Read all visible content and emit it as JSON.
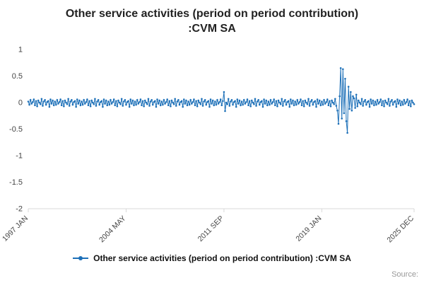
{
  "title": {
    "line1": "Other service activities (period on period contribution)",
    "line2": ":CVM SA"
  },
  "legend": {
    "label": "Other service activities (period on period contribution) :CVM SA"
  },
  "source_label": "Source:",
  "colors": {
    "series": "#1d70b8",
    "axis": "#d8d8d8",
    "tick_text": "#444444"
  },
  "chart_data": {
    "type": "line",
    "title": "Other service activities (period on period contribution) :CVM SA",
    "xlabel": "",
    "ylabel": "",
    "ylim": [
      -2,
      1
    ],
    "grid": false,
    "legend_position": "bottom",
    "y_tick_labels": [
      "1",
      "0.5",
      "0",
      "-0.5",
      "-1",
      "-1.5",
      "-2"
    ],
    "y_tick_values": [
      1,
      0.5,
      0,
      -0.5,
      -1,
      -1.5,
      -2
    ],
    "x_tick_labels": [
      "1997 JAN",
      "2004 MAY",
      "2011 SEP",
      "2019 JAN",
      "2025 DEC"
    ],
    "x_tick_indices": [
      0,
      88,
      176,
      264,
      347
    ],
    "x_start": "1997 JAN",
    "x_end": "2025 DEC",
    "frequency": "monthly",
    "series": [
      {
        "name": "Other service activities (period on period contribution) :CVM SA",
        "values": [
          0.02,
          -0.04,
          0.05,
          -0.02,
          0.01,
          0.06,
          -0.05,
          0.03,
          -0.07,
          0.04,
          0.0,
          -0.03,
          0.07,
          -0.06,
          0.02,
          0.05,
          -0.04,
          0.01,
          0.03,
          -0.08,
          0.06,
          -0.02,
          0.04,
          -0.05,
          0.02,
          -0.04,
          0.05,
          -0.02,
          0.01,
          0.06,
          -0.05,
          0.03,
          -0.07,
          0.04,
          0.0,
          -0.03,
          0.07,
          -0.06,
          0.02,
          0.05,
          -0.04,
          0.01,
          0.03,
          -0.08,
          0.06,
          -0.02,
          0.04,
          -0.05,
          0.02,
          -0.04,
          0.05,
          -0.02,
          0.01,
          0.06,
          -0.05,
          0.03,
          -0.07,
          0.04,
          0.0,
          -0.03,
          0.07,
          -0.06,
          0.02,
          0.05,
          -0.04,
          0.01,
          0.03,
          -0.08,
          0.06,
          -0.02,
          0.04,
          -0.05,
          0.02,
          -0.04,
          0.05,
          -0.02,
          0.01,
          0.06,
          -0.05,
          0.03,
          -0.07,
          0.04,
          0.0,
          -0.03,
          0.07,
          -0.06,
          0.02,
          0.05,
          -0.04,
          0.01,
          0.03,
          -0.08,
          0.06,
          -0.02,
          0.04,
          -0.05,
          0.02,
          -0.04,
          0.05,
          -0.02,
          0.01,
          0.06,
          -0.05,
          0.03,
          -0.07,
          0.04,
          0.0,
          -0.03,
          0.07,
          -0.06,
          0.02,
          0.05,
          -0.04,
          0.01,
          0.03,
          -0.08,
          0.06,
          -0.02,
          0.04,
          -0.05,
          0.02,
          -0.04,
          0.05,
          -0.02,
          0.01,
          0.06,
          -0.05,
          0.03,
          -0.07,
          0.04,
          0.0,
          -0.03,
          0.07,
          -0.06,
          0.02,
          0.05,
          -0.04,
          0.01,
          0.03,
          -0.08,
          0.06,
          -0.02,
          0.04,
          -0.05,
          0.02,
          -0.04,
          0.05,
          -0.02,
          0.01,
          0.06,
          -0.05,
          0.03,
          -0.07,
          0.04,
          0.0,
          -0.03,
          0.07,
          -0.06,
          0.02,
          0.05,
          -0.04,
          0.01,
          0.03,
          -0.08,
          0.06,
          -0.02,
          0.04,
          -0.05,
          0.02,
          -0.04,
          0.05,
          -0.02,
          0.01,
          0.06,
          -0.05,
          0.03,
          0.2,
          -0.16,
          0.0,
          -0.03,
          0.07,
          -0.06,
          0.02,
          0.05,
          -0.04,
          0.01,
          0.03,
          -0.08,
          0.06,
          -0.02,
          0.04,
          -0.05,
          0.02,
          -0.04,
          0.05,
          -0.02,
          0.01,
          0.06,
          -0.05,
          0.03,
          -0.07,
          0.04,
          0.0,
          -0.03,
          0.07,
          -0.06,
          0.02,
          0.05,
          -0.04,
          0.01,
          0.03,
          -0.08,
          0.06,
          -0.02,
          0.04,
          -0.05,
          0.02,
          -0.04,
          0.05,
          -0.02,
          0.01,
          0.06,
          -0.05,
          0.03,
          -0.07,
          0.04,
          0.0,
          -0.03,
          0.07,
          -0.06,
          0.02,
          0.05,
          -0.04,
          0.01,
          0.03,
          -0.08,
          0.06,
          -0.02,
          0.04,
          -0.05,
          0.02,
          -0.04,
          0.05,
          -0.02,
          0.01,
          0.06,
          -0.05,
          0.03,
          -0.07,
          0.04,
          0.0,
          -0.03,
          0.07,
          -0.06,
          0.02,
          0.05,
          -0.04,
          0.01,
          0.03,
          -0.08,
          0.06,
          -0.02,
          0.04,
          -0.05,
          0.02,
          -0.04,
          0.05,
          -0.02,
          0.01,
          0.06,
          -0.05,
          0.03,
          -0.07,
          0.04,
          0.0,
          -0.03,
          0.07,
          -0.06,
          -0.15,
          -0.4,
          0.12,
          0.65,
          -0.3,
          0.63,
          -0.2,
          0.45,
          -0.35,
          -0.57,
          0.3,
          -0.12,
          0.2,
          -0.15,
          0.12,
          0.08,
          -0.1,
          0.15,
          -0.07,
          0.04,
          0.0,
          -0.03,
          0.07,
          -0.06,
          0.02,
          0.05,
          -0.04,
          0.01,
          0.03,
          -0.08,
          0.06,
          -0.02,
          0.04,
          -0.05,
          0.02,
          -0.04,
          0.05,
          -0.02,
          0.01,
          0.06,
          -0.05,
          0.03,
          -0.07,
          0.04,
          0.0,
          -0.03,
          0.07,
          -0.06,
          0.02,
          0.05,
          -0.04,
          0.01,
          0.03,
          -0.08,
          0.06,
          -0.02,
          0.04,
          -0.05,
          0.02,
          -0.04,
          0.05,
          -0.02,
          0.01,
          0.06,
          -0.05,
          0.03,
          -0.07,
          0.04,
          0.0,
          -0.03
        ]
      }
    ]
  }
}
